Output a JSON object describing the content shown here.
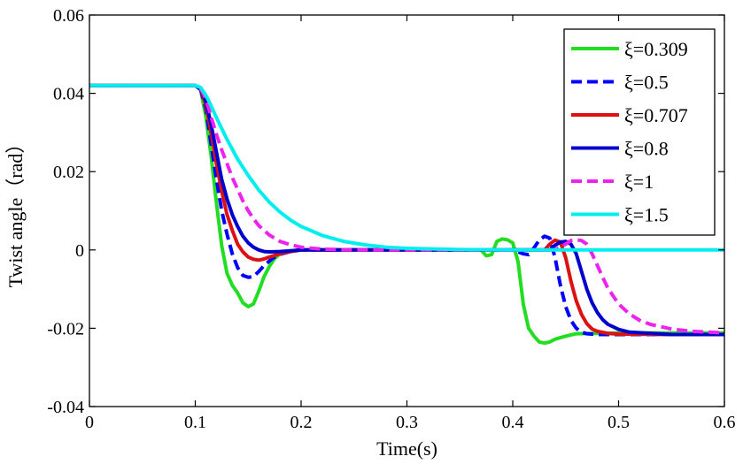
{
  "chart_data": {
    "type": "line",
    "xlabel": "Time(s)",
    "ylabel": "Twist angle（rad）",
    "xlim": [
      0,
      0.6
    ],
    "ylim": [
      -0.04,
      0.06
    ],
    "x_ticks": [
      "0",
      "0.1",
      "0.2",
      "0.3",
      "0.4",
      "0.5",
      "0.6"
    ],
    "x_tick_values": [
      0,
      0.1,
      0.2,
      0.3,
      0.4,
      0.5,
      0.6
    ],
    "y_ticks": [
      "-0.04",
      "-0.02",
      "0",
      "0.02",
      "0.04",
      "0.06"
    ],
    "y_tick_values": [
      -0.04,
      -0.02,
      0,
      0.02,
      0.04,
      0.06
    ],
    "grid": false,
    "legend_position": "top-right",
    "series": [
      {
        "name": "ξ=0.309",
        "color": "#22dd22",
        "dash": "solid",
        "x": [
          0,
          0.1,
          0.105,
          0.11,
          0.115,
          0.12,
          0.125,
          0.13,
          0.135,
          0.14,
          0.145,
          0.15,
          0.155,
          0.16,
          0.165,
          0.17,
          0.175,
          0.18,
          0.19,
          0.2,
          0.25,
          0.3,
          0.35,
          0.37,
          0.375,
          0.38,
          0.385,
          0.39,
          0.395,
          0.4,
          0.405,
          0.41,
          0.415,
          0.42,
          0.425,
          0.43,
          0.435,
          0.44,
          0.45,
          0.46,
          0.5,
          0.55,
          0.6
        ],
        "y": [
          0.042,
          0.042,
          0.041,
          0.034,
          0.024,
          0.012,
          0.001,
          -0.006,
          -0.009,
          -0.011,
          -0.0135,
          -0.0145,
          -0.0138,
          -0.0105,
          -0.0068,
          -0.0042,
          -0.0022,
          -0.001,
          -0.0003,
          0,
          0,
          0,
          0,
          0,
          -0.0015,
          -0.0012,
          0.0022,
          0.0028,
          0.0026,
          0.0018,
          -0.003,
          -0.014,
          -0.02,
          -0.022,
          -0.0235,
          -0.0238,
          -0.0235,
          -0.0228,
          -0.022,
          -0.0214,
          -0.0212,
          -0.0212,
          -0.0212
        ]
      },
      {
        "name": "ξ=0.5",
        "color": "#0000ff",
        "dash": "dashed",
        "x": [
          0,
          0.1,
          0.105,
          0.11,
          0.115,
          0.12,
          0.125,
          0.13,
          0.135,
          0.14,
          0.145,
          0.15,
          0.155,
          0.16,
          0.165,
          0.17,
          0.175,
          0.18,
          0.19,
          0.2,
          0.25,
          0.3,
          0.35,
          0.4,
          0.41,
          0.415,
          0.42,
          0.425,
          0.43,
          0.435,
          0.44,
          0.445,
          0.45,
          0.455,
          0.46,
          0.465,
          0.47,
          0.48,
          0.5,
          0.55,
          0.6
        ],
        "y": [
          0.042,
          0.042,
          0.041,
          0.036,
          0.027,
          0.018,
          0.01,
          0.004,
          -0.001,
          -0.0045,
          -0.0065,
          -0.007,
          -0.0068,
          -0.0055,
          -0.004,
          -0.0028,
          -0.0018,
          -0.0011,
          -0.0004,
          0,
          0,
          0,
          0,
          0,
          -0.001,
          -0.0012,
          0.0005,
          0.0025,
          0.0035,
          0.003,
          -0.002,
          -0.009,
          -0.0145,
          -0.018,
          -0.02,
          -0.021,
          -0.0214,
          -0.0216,
          -0.0216,
          -0.0216,
          -0.0216
        ]
      },
      {
        "name": "ξ=0.707",
        "color": "#dd1111",
        "dash": "solid",
        "x": [
          0,
          0.1,
          0.105,
          0.11,
          0.115,
          0.12,
          0.125,
          0.13,
          0.135,
          0.14,
          0.145,
          0.15,
          0.155,
          0.16,
          0.165,
          0.17,
          0.18,
          0.19,
          0.2,
          0.25,
          0.3,
          0.35,
          0.4,
          0.42,
          0.43,
          0.435,
          0.44,
          0.445,
          0.45,
          0.455,
          0.46,
          0.465,
          0.47,
          0.475,
          0.48,
          0.49,
          0.5,
          0.55,
          0.6
        ],
        "y": [
          0.042,
          0.042,
          0.041,
          0.037,
          0.03,
          0.022,
          0.015,
          0.009,
          0.005,
          0.0015,
          -0.0005,
          -0.0018,
          -0.0024,
          -0.0026,
          -0.0023,
          -0.0018,
          -0.001,
          -0.0004,
          0,
          0,
          0,
          0,
          0,
          0,
          0,
          0.0015,
          0.0025,
          0.002,
          -0.002,
          -0.008,
          -0.013,
          -0.0165,
          -0.0188,
          -0.0202,
          -0.0208,
          -0.0213,
          -0.0215,
          -0.0216,
          -0.0216
        ]
      },
      {
        "name": "ξ=0.8",
        "color": "#0000cc",
        "dash": "solid",
        "x": [
          0,
          0.1,
          0.105,
          0.11,
          0.115,
          0.12,
          0.125,
          0.13,
          0.135,
          0.14,
          0.145,
          0.15,
          0.155,
          0.16,
          0.165,
          0.17,
          0.18,
          0.19,
          0.2,
          0.25,
          0.3,
          0.35,
          0.4,
          0.42,
          0.435,
          0.44,
          0.445,
          0.45,
          0.455,
          0.46,
          0.465,
          0.47,
          0.475,
          0.48,
          0.485,
          0.49,
          0.5,
          0.51,
          0.55,
          0.6
        ],
        "y": [
          0.042,
          0.042,
          0.041,
          0.038,
          0.032,
          0.025,
          0.018,
          0.013,
          0.009,
          0.006,
          0.0035,
          0.0018,
          0.0007,
          0,
          -0.0004,
          -0.0005,
          -0.0004,
          -0.0002,
          0,
          0,
          0,
          0,
          0,
          0,
          0,
          0.0012,
          0.002,
          0.0022,
          0.0015,
          -0.001,
          -0.0055,
          -0.01,
          -0.0135,
          -0.016,
          -0.0178,
          -0.019,
          -0.0203,
          -0.021,
          -0.0216,
          -0.0216
        ]
      },
      {
        "name": "ξ=1",
        "color": "#ee22ee",
        "dash": "dashed",
        "x": [
          0,
          0.1,
          0.105,
          0.11,
          0.115,
          0.12,
          0.125,
          0.13,
          0.135,
          0.14,
          0.145,
          0.15,
          0.155,
          0.16,
          0.17,
          0.18,
          0.19,
          0.2,
          0.22,
          0.25,
          0.3,
          0.35,
          0.4,
          0.44,
          0.45,
          0.455,
          0.46,
          0.465,
          0.47,
          0.475,
          0.48,
          0.485,
          0.49,
          0.5,
          0.51,
          0.52,
          0.53,
          0.55,
          0.57,
          0.6
        ],
        "y": [
          0.042,
          0.042,
          0.0412,
          0.0385,
          0.034,
          0.0295,
          0.0255,
          0.022,
          0.0185,
          0.0155,
          0.0125,
          0.01,
          0.008,
          0.0062,
          0.0038,
          0.0022,
          0.0013,
          0.0007,
          0.0002,
          0,
          0,
          0,
          0,
          0,
          0.0015,
          0.0024,
          0.0026,
          0.0024,
          0.0015,
          -0.001,
          -0.004,
          -0.007,
          -0.0098,
          -0.0138,
          -0.0163,
          -0.018,
          -0.019,
          -0.0202,
          -0.0208,
          -0.0212
        ]
      },
      {
        "name": "ξ=1.5",
        "color": "#00eeee",
        "dash": "solid",
        "x": [
          0,
          0.1,
          0.105,
          0.11,
          0.115,
          0.12,
          0.13,
          0.14,
          0.15,
          0.16,
          0.17,
          0.18,
          0.19,
          0.2,
          0.22,
          0.24,
          0.26,
          0.28,
          0.3,
          0.35,
          0.4,
          0.5,
          0.6
        ],
        "y": [
          0.042,
          0.042,
          0.0415,
          0.0395,
          0.0368,
          0.0338,
          0.0282,
          0.0232,
          0.019,
          0.0153,
          0.0122,
          0.0097,
          0.0076,
          0.006,
          0.0037,
          0.0022,
          0.0013,
          0.0007,
          0.0004,
          0.0001,
          0,
          0,
          0
        ]
      }
    ]
  }
}
